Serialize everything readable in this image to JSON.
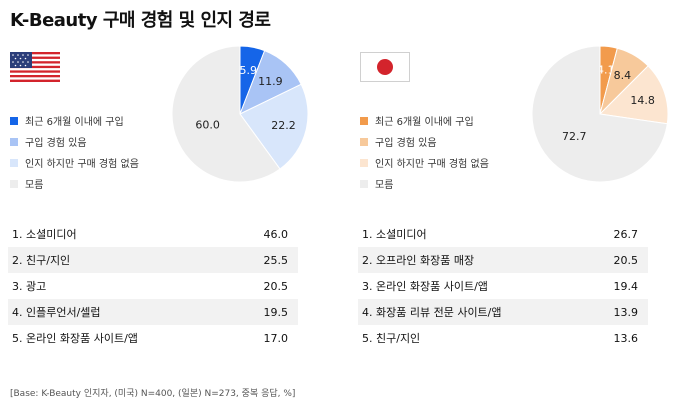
{
  "title": "K-Beauty 구매 경험 및 인지 경로",
  "footnote": "[Base: K-Beauty 인지자, (미국) N=400, (일본) N=273, 중복 응답, %]",
  "legend_labels": [
    "최근 6개월 이내에 구입",
    "구입 경험 있음",
    "인지 하지만 구매 경험 없음",
    "모름"
  ],
  "panels": [
    {
      "country": "us",
      "flag_icon": "usa-flag-icon",
      "colors": [
        "#1565e8",
        "#a9c4f5",
        "#d8e6fb",
        "#ededed"
      ],
      "ranking": [
        {
          "label": "1. 소셜미디어",
          "value": "46.0"
        },
        {
          "label": "2. 친구/지인",
          "value": "25.5"
        },
        {
          "label": "3. 광고",
          "value": "20.5"
        },
        {
          "label": "4. 인플루언서/셀럽",
          "value": "19.5"
        },
        {
          "label": "5. 온라인 화장품 사이트/앱",
          "value": "17.0"
        }
      ]
    },
    {
      "country": "jp",
      "flag_icon": "japan-flag-icon",
      "colors": [
        "#f29b4c",
        "#f7c99b",
        "#fce5d0",
        "#ededed"
      ],
      "ranking": [
        {
          "label": "1. 소셜미디어",
          "value": "26.7"
        },
        {
          "label": "2. 오프라인 화장품 매장",
          "value": "20.5"
        },
        {
          "label": "3. 온라인 화장품 사이트/앱",
          "value": "19.4"
        },
        {
          "label": "4. 화장품 리뷰 전문 사이트/앱",
          "value": "13.9"
        },
        {
          "label": "5. 친구/지인",
          "value": "13.6"
        }
      ]
    }
  ],
  "chart_data": [
    {
      "type": "pie",
      "categories": [
        "최근 6개월 이내에 구입",
        "구입 경험 있음",
        "인지 하지만 구매 경험 없음",
        "모름"
      ],
      "values": [
        5.9,
        11.9,
        22.2,
        60.0
      ],
      "labels": [
        "5.9",
        "11.9",
        "22.2",
        "60.0"
      ]
    },
    {
      "type": "pie",
      "categories": [
        "최근 6개월 이내에 구입",
        "구입 경험 있음",
        "인지 하지만 구매 경험 없음",
        "모름"
      ],
      "values": [
        4.1,
        8.4,
        14.8,
        72.7
      ],
      "labels": [
        "4.1",
        "8.4",
        "14.8",
        "72.7"
      ]
    }
  ]
}
